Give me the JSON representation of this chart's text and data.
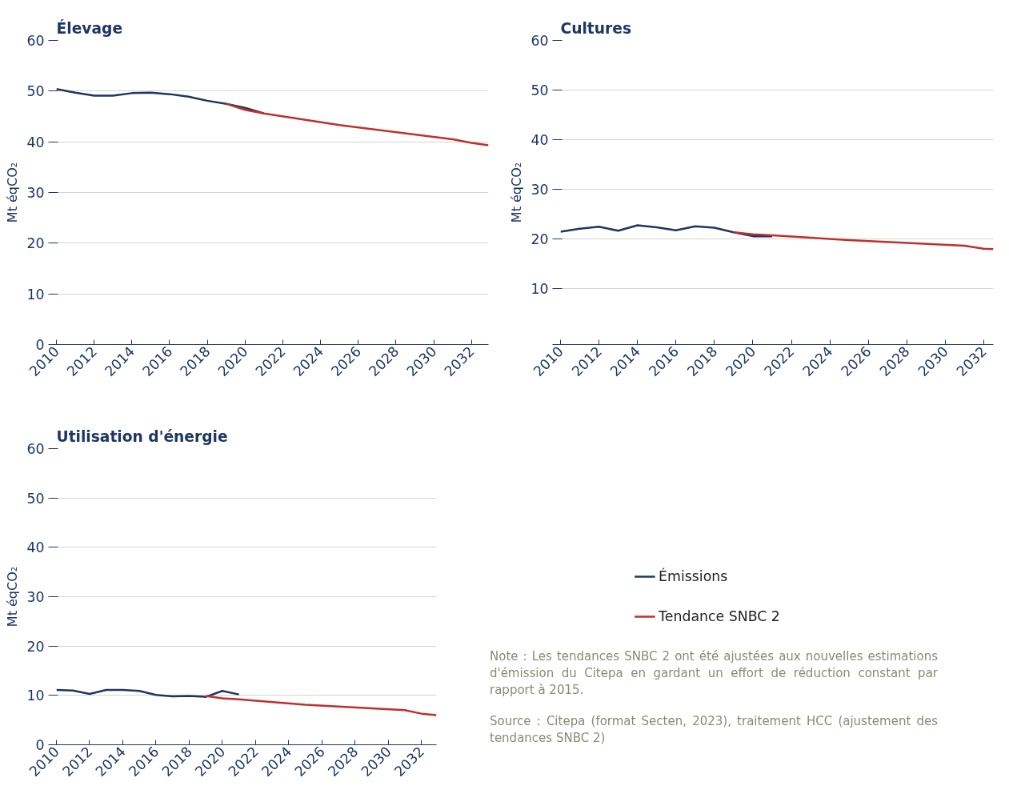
{
  "chart_data": [
    {
      "type": "line",
      "title": "Élevage",
      "ylabel": "Mt éqCO₂",
      "xlim": [
        2010,
        2032.9
      ],
      "ylim": [
        0,
        60
      ],
      "xticks": [
        2010,
        2012,
        2014,
        2016,
        2018,
        2020,
        2022,
        2024,
        2026,
        2028,
        2030,
        2032
      ],
      "yticks": [
        0,
        10,
        20,
        30,
        40,
        50,
        60
      ],
      "grid": "y",
      "legend": false,
      "series": [
        {
          "color": "#1f3564",
          "x": [
            2010,
            2011,
            2012,
            2013,
            2014,
            2015,
            2016,
            2017,
            2018,
            2019,
            2020,
            2021
          ],
          "values": [
            50.4,
            49.7,
            49.1,
            49.1,
            49.6,
            49.7,
            49.4,
            48.9,
            48.1,
            47.5,
            46.7,
            45.6
          ]
        },
        {
          "color": "#c0302b",
          "x": [
            2019,
            2020,
            2021,
            2025,
            2031,
            2032,
            2032.9
          ],
          "values": [
            47.5,
            46.3,
            45.6,
            43.3,
            40.5,
            39.8,
            39.3
          ]
        }
      ]
    },
    {
      "type": "line",
      "title": "Cultures",
      "ylabel": "Mt éqCO₂",
      "xlim": [
        2010,
        2032.5
      ],
      "ylim": [
        -1.2,
        60
      ],
      "xticks": [
        2010,
        2012,
        2014,
        2016,
        2018,
        2020,
        2022,
        2024,
        2026,
        2028,
        2030,
        2032
      ],
      "yticks": [
        {
          "value": -1.2,
          "label": null
        },
        10,
        20,
        30,
        40,
        50,
        60
      ],
      "grid": "y",
      "legend": false,
      "series": [
        {
          "color": "#1f3564",
          "x": [
            2010,
            2011,
            2012,
            2013,
            2014,
            2015,
            2016,
            2017,
            2018,
            2019,
            2020,
            2021
          ],
          "values": [
            21.5,
            22.1,
            22.5,
            21.7,
            22.8,
            22.4,
            21.8,
            22.6,
            22.3,
            21.4,
            20.6,
            20.6
          ]
        },
        {
          "color": "#c0302b",
          "x": [
            2019,
            2020,
            2021,
            2025,
            2031,
            2032,
            2032.5
          ],
          "values": [
            21.4,
            21.0,
            20.8,
            19.8,
            18.7,
            18.1,
            18.0
          ]
        }
      ]
    },
    {
      "type": "line",
      "title": "Utilisation d'énergie",
      "ylabel": "Mt éqCO₂",
      "xlim": [
        2010,
        2032.9
      ],
      "ylim": [
        0,
        60
      ],
      "xticks": [
        2010,
        2012,
        2014,
        2016,
        2018,
        2020,
        2022,
        2024,
        2026,
        2028,
        2030,
        2032
      ],
      "yticks": [
        0,
        10,
        20,
        30,
        40,
        50,
        60
      ],
      "grid": "y",
      "legend": "right",
      "series": [
        {
          "name": "Émissions",
          "color": "#1f3564",
          "x": [
            2010,
            2011,
            2012,
            2013,
            2014,
            2015,
            2016,
            2017,
            2018,
            2019,
            2020,
            2021
          ],
          "values": [
            11.1,
            11.0,
            10.3,
            11.1,
            11.1,
            10.9,
            10.1,
            9.8,
            9.9,
            9.7,
            10.9,
            10.2
          ]
        },
        {
          "name": "Tendance SNBC 2",
          "color": "#c0302b",
          "x": [
            2019,
            2020,
            2021,
            2025,
            2031,
            2032,
            2032.9
          ],
          "values": [
            9.9,
            9.4,
            9.2,
            8.1,
            7.0,
            6.3,
            6.0
          ]
        }
      ],
      "annotations": [
        "Note : Les tendances SNBC 2 ont été ajustées aux nouvelles estimations d'émission du Citepa en gardant un effort de réduction constant par rapport à 2015.",
        "Source : Citepa (format Secten, 2023), traitement HCC (ajustement des tendances SNBC 2)"
      ]
    }
  ]
}
